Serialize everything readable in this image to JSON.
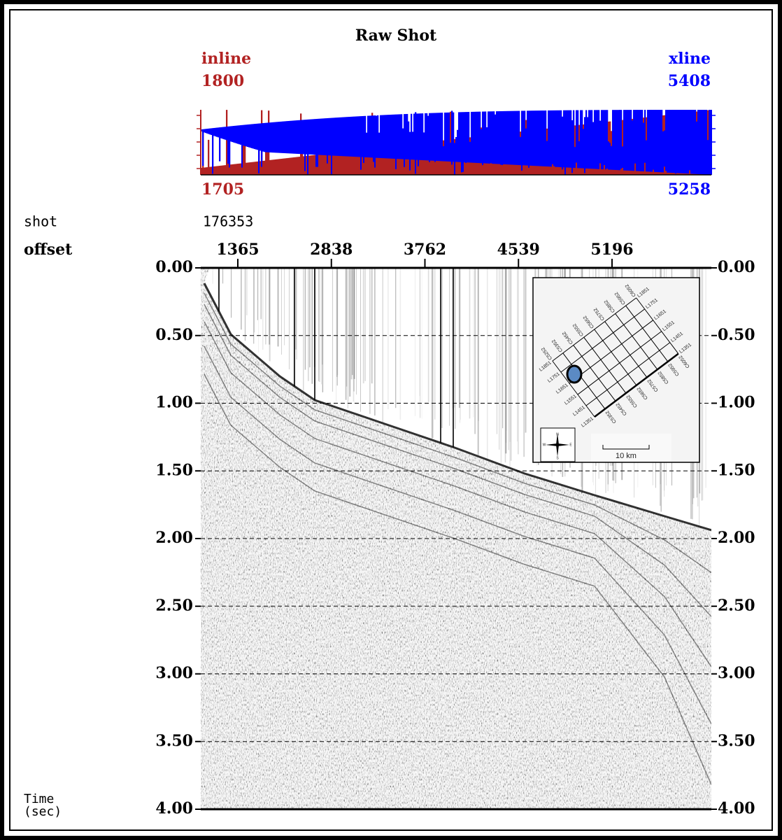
{
  "chart_data": {
    "type": "seismic",
    "title": "Raw Shot",
    "inline": {
      "label": "inline",
      "top": 1800,
      "bottom": 1705,
      "color": "#b22222"
    },
    "xline": {
      "label": "xline",
      "top": 5408,
      "bottom": 5258,
      "color": "#0000ff"
    },
    "shot": {
      "label": "shot",
      "value": 176353
    },
    "offset": {
      "label": "offset",
      "ticks": [
        1365,
        2838,
        3762,
        4539,
        5196
      ]
    },
    "ylabel": [
      "Time",
      "(sec)"
    ],
    "ylim": [
      0,
      4
    ],
    "yticks": [
      {
        "value": 0,
        "label": "0.00"
      },
      {
        "value": 0.5,
        "label": "0.50"
      },
      {
        "value": 1,
        "label": "1.00"
      },
      {
        "value": 1.5,
        "label": "1.50"
      },
      {
        "value": 2,
        "label": "2.00"
      },
      {
        "value": 2.5,
        "label": "2.50"
      },
      {
        "value": 3,
        "label": "3.00"
      },
      {
        "value": 3.5,
        "label": "3.50"
      },
      {
        "value": 4,
        "label": "4.00"
      }
    ],
    "grid": true,
    "map": {
      "crosslines": [
        "C5252",
        "C5352",
        "C5452",
        "C5552",
        "C5652",
        "C5752",
        "C5852",
        "C5952",
        "C6052"
      ],
      "inlines": [
        "L1351",
        "L1451",
        "L1551",
        "L1651",
        "L1751",
        "L1851"
      ],
      "scale": "10 km",
      "compass": [
        "N",
        "E",
        "S",
        "W"
      ]
    }
  }
}
